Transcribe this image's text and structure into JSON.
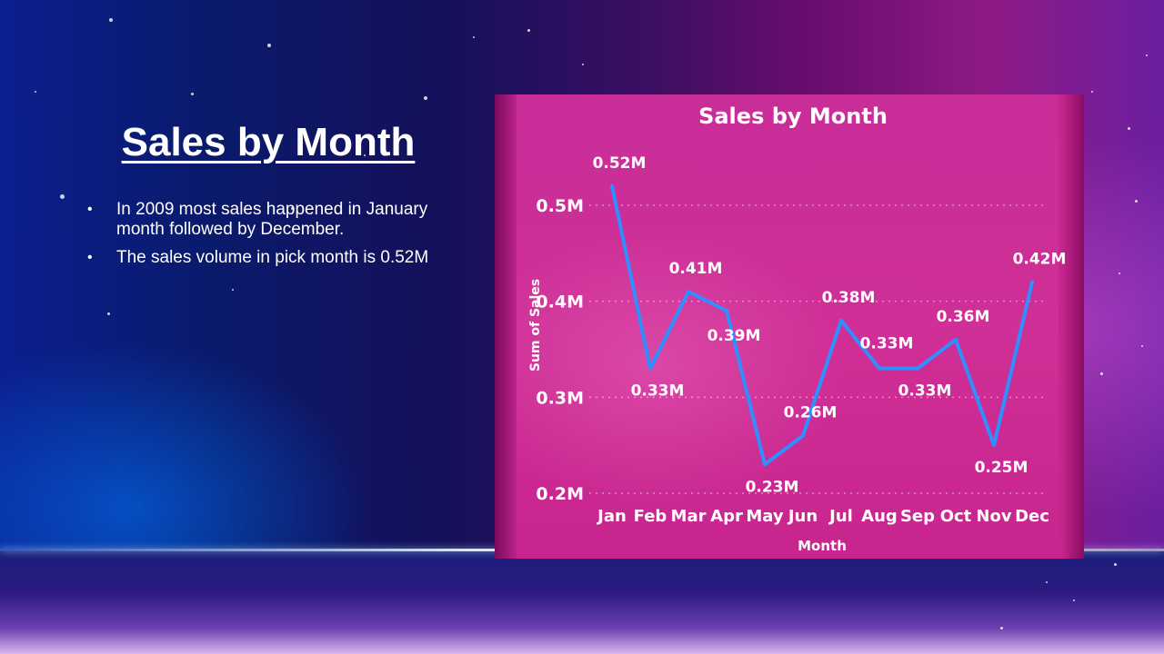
{
  "slide": {
    "title": "Sales by Month",
    "bullets": [
      "In 2009 most sales happened in January month followed by December.",
      "The sales volume in pick month is 0.52M"
    ]
  },
  "colors": {
    "line": "#2f8fff",
    "chart_bg": "#c92d98",
    "text": "#ffffff"
  },
  "chart_data": {
    "type": "line",
    "title": "Sales by Month",
    "xlabel": "Month",
    "ylabel": "Sum of Sales",
    "categories": [
      "Jan",
      "Feb",
      "Mar",
      "Apr",
      "May",
      "Jun",
      "Jul",
      "Aug",
      "Sep",
      "Oct",
      "Nov",
      "Dec"
    ],
    "series": [
      {
        "values": [
          0.52,
          0.33,
          0.41,
          0.39,
          0.23,
          0.26,
          0.38,
          0.33,
          0.33,
          0.36,
          0.25,
          0.42
        ],
        "labels": [
          "0.52M",
          "0.33M",
          "0.41M",
          "0.39M",
          "0.23M",
          "0.26M",
          "0.38M",
          "0.33M",
          "0.33M",
          "0.36M",
          "0.25M",
          "0.42M"
        ]
      }
    ],
    "yticks": [
      0.2,
      0.3,
      0.4,
      0.5
    ],
    "ytick_labels": [
      "0.2M",
      "0.3M",
      "0.4M",
      "0.5M"
    ],
    "ylim": [
      0.2,
      0.52
    ],
    "grid": true,
    "legend": "none"
  }
}
